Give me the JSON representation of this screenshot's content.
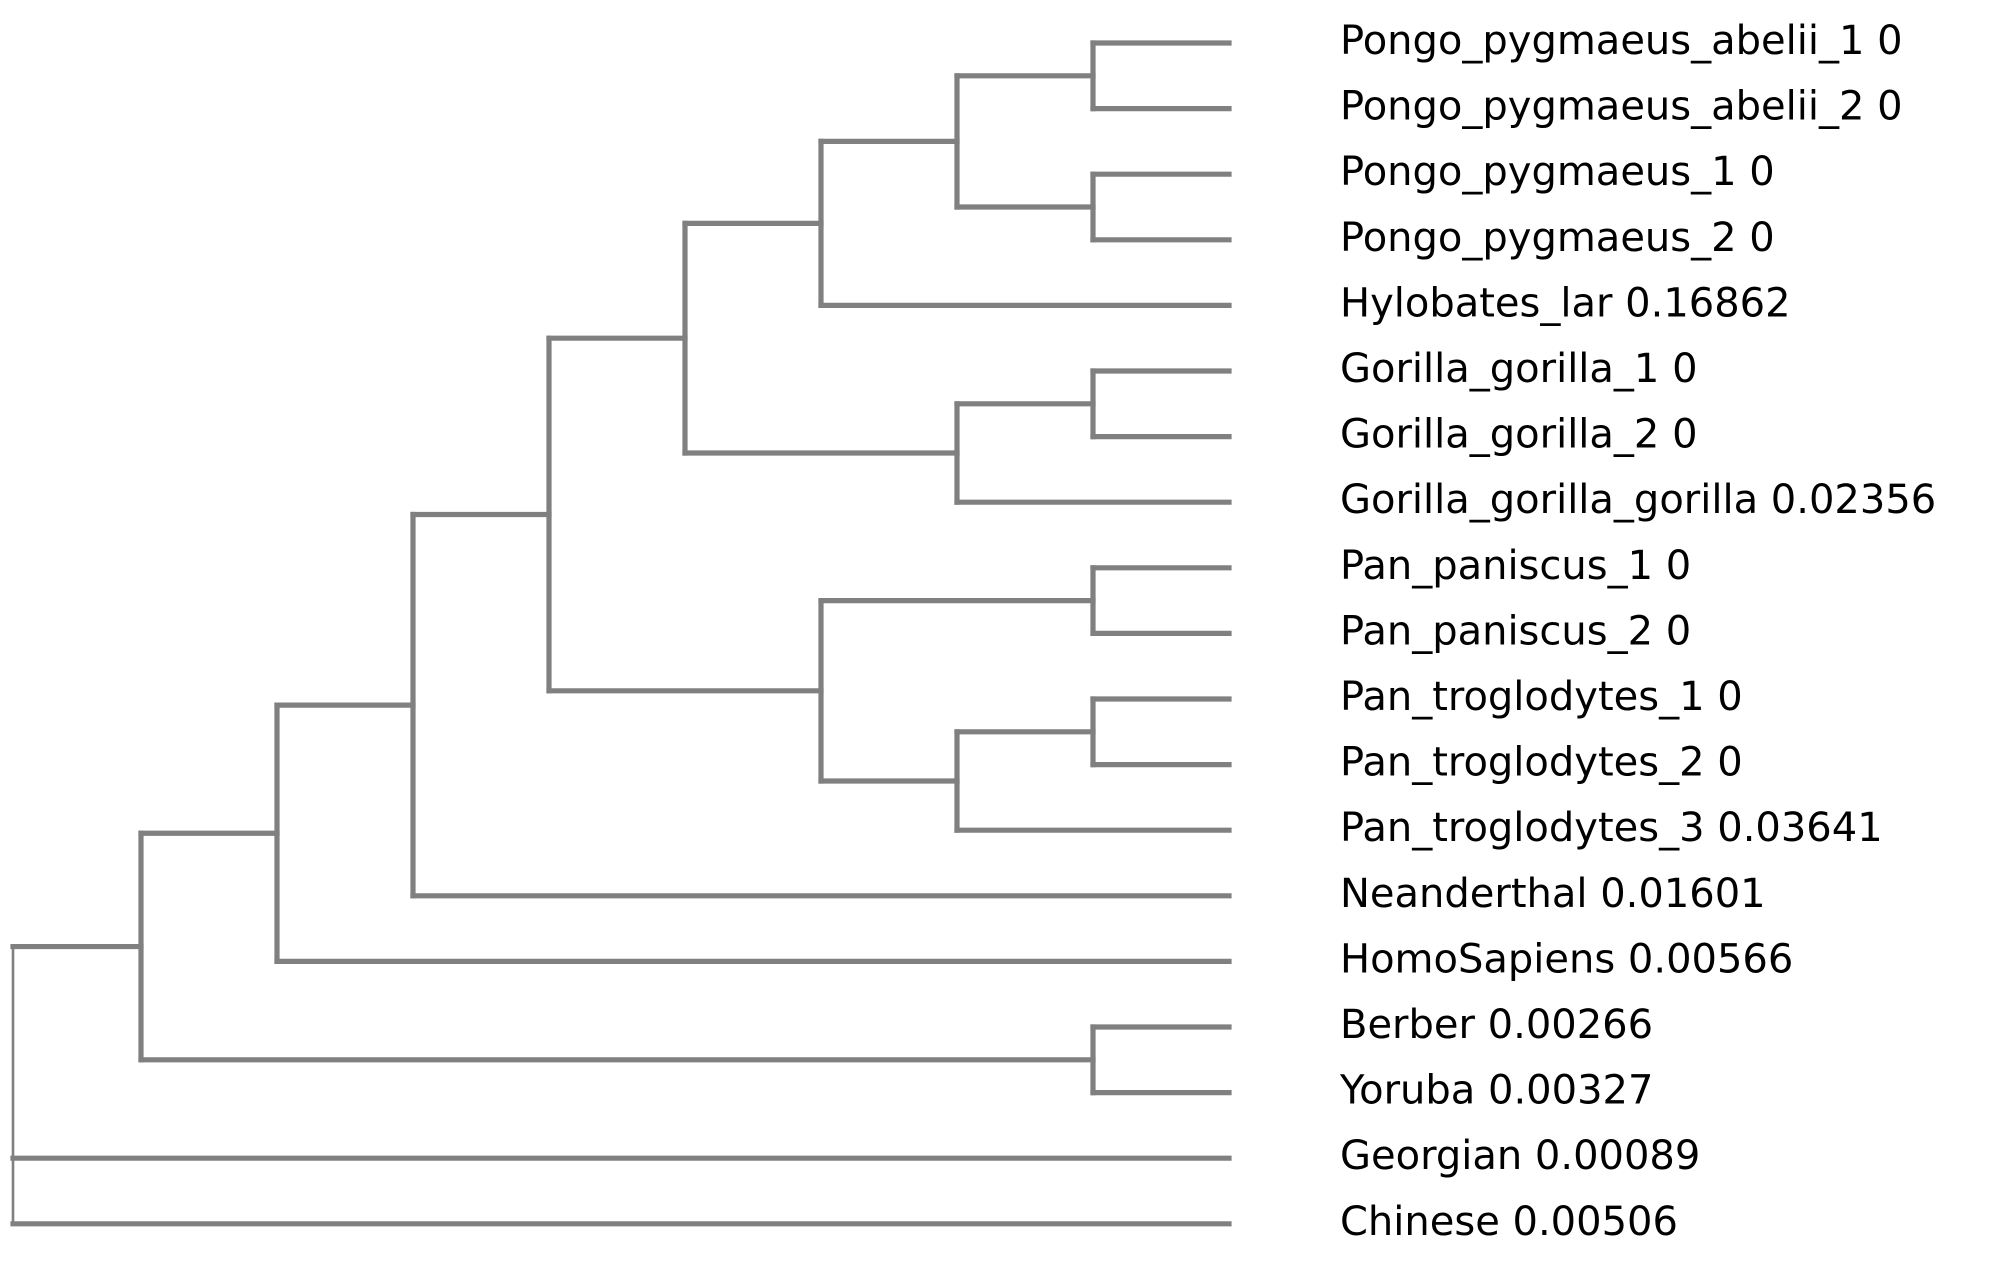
{
  "tree": {
    "line_color": "#808080",
    "text_color": "#000000",
    "background": "#ffffff",
    "root": {
      "children": [
        {
          "children": [
            {
              "children": [
                {
                  "children": [
                    {
                      "children": [
                        {
                          "children": [
                            {
                              "children": [
                                {
                                  "children": [
                                    {
                                      "label": "Pongo_pygmaeus_abelii_1 0"
                                    },
                                    {
                                      "label": "Pongo_pygmaeus_abelii_2 0"
                                    }
                                  ]
                                },
                                {
                                  "children": [
                                    {
                                      "label": "Pongo_pygmaeus_1 0"
                                    },
                                    {
                                      "label": "Pongo_pygmaeus_2 0"
                                    }
                                  ]
                                }
                              ]
                            },
                            {
                              "label": "Hylobates_lar 0.16862"
                            }
                          ]
                        },
                        {
                          "children": [
                            {
                              "children": [
                                {
                                  "label": "Gorilla_gorilla_1 0"
                                },
                                {
                                  "label": "Gorilla_gorilla_2 0"
                                }
                              ]
                            },
                            {
                              "label": "Gorilla_gorilla_gorilla 0.02356"
                            }
                          ]
                        }
                      ]
                    },
                    {
                      "children": [
                        {
                          "children": [
                            {
                              "label": "Pan_paniscus_1 0"
                            },
                            {
                              "label": "Pan_paniscus_2 0"
                            }
                          ]
                        },
                        {
                          "children": [
                            {
                              "children": [
                                {
                                  "label": "Pan_troglodytes_1 0"
                                },
                                {
                                  "label": "Pan_troglodytes_2 0"
                                }
                              ]
                            },
                            {
                              "label": "Pan_troglodytes_3 0.03641"
                            }
                          ]
                        }
                      ]
                    }
                  ]
                },
                {
                  "label": "Neanderthal 0.01601"
                }
              ]
            },
            {
              "label": "HomoSapiens 0.00566"
            }
          ]
        },
        {
          "children": [
            {
              "label": "Berber 0.00266"
            },
            {
              "label": "Yoruba 0.00327"
            }
          ]
        }
      ]
    },
    "outgroup": [
      {
        "label": "Georgian 0.00089"
      },
      {
        "label": "Chinese 0.00506"
      }
    ]
  }
}
